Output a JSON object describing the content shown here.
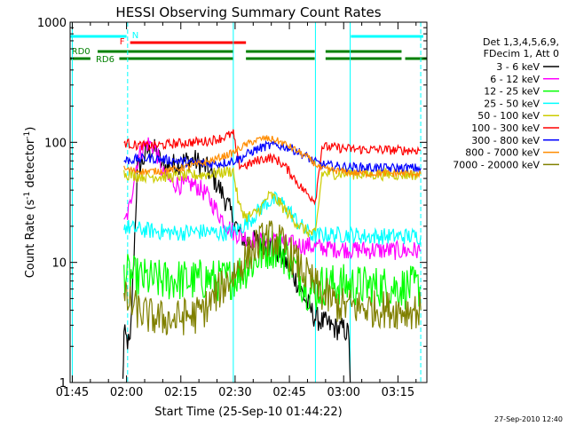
{
  "chart_data": {
    "type": "line",
    "title": "HESSI Observing Summary Count Rates",
    "xlabel": "Start Time (25-Sep-10 01:44:22)",
    "ylabel_main": "Count Rate (s",
    "ylabel_sup1": "-1",
    "ylabel_mid": " detector",
    "ylabel_sup2": "-1",
    "ylabel_end": ")",
    "yscale": "log",
    "ylim": [
      1,
      1000
    ],
    "xlim_min": [
      104.4,
      203
    ],
    "x_ticks": [
      {
        "m": 105,
        "label": "01:45"
      },
      {
        "m": 120,
        "label": "02:00"
      },
      {
        "m": 135,
        "label": "02:15"
      },
      {
        "m": 150,
        "label": "02:30"
      },
      {
        "m": 165,
        "label": "02:45"
      },
      {
        "m": 180,
        "label": "03:00"
      },
      {
        "m": 195,
        "label": "03:15"
      }
    ],
    "y_ticks": [
      {
        "v": 1,
        "label": "1"
      },
      {
        "v": 10,
        "label": "10"
      },
      {
        "v": 100,
        "label": "100"
      },
      {
        "v": 1000,
        "label": "1000"
      }
    ],
    "legend": {
      "position": "right",
      "header": [
        "Det 1,3,4,5,6,9,",
        "FDecim 1, Att 0"
      ],
      "entries": [
        {
          "label": "3 - 6 keV",
          "color": "#000000"
        },
        {
          "label": "6 - 12 keV",
          "color": "#ff00ff"
        },
        {
          "label": "12 - 25 keV",
          "color": "#00ff00"
        },
        {
          "label": "25 - 50 keV",
          "color": "#00ffff"
        },
        {
          "label": "50 - 100 keV",
          "color": "#cccc00"
        },
        {
          "label": "100 - 300 keV",
          "color": "#ff0000"
        },
        {
          "label": "300 - 800 keV",
          "color": "#0000ff"
        },
        {
          "label": "800 - 7000 keV",
          "color": "#ff8c00"
        },
        {
          "label": "7000 - 20000 keV",
          "color": "#808000"
        }
      ]
    },
    "flags": [
      {
        "label": "N",
        "color": "#00ffff",
        "row": "top",
        "segments": [
          [
            104.4,
            120
          ],
          [
            182,
            202
          ]
        ]
      },
      {
        "label": "F",
        "color": "#ff0000",
        "row": "second",
        "segments": [
          [
            121,
            153
          ]
        ]
      },
      {
        "label": "RD0",
        "color": "#008000",
        "row": "third",
        "segments": [
          [
            112,
            149.5
          ],
          [
            153,
            172
          ],
          [
            175,
            196
          ]
        ]
      },
      {
        "label": "RD6",
        "color": "#008000",
        "row": "fourth",
        "segments": [
          [
            104.4,
            110
          ],
          [
            118,
            149.5
          ],
          [
            153,
            172
          ],
          [
            175,
            196
          ],
          [
            197,
            203
          ]
        ]
      }
    ],
    "vertical_lines": [
      {
        "m": 105,
        "color": "#00ffff",
        "style": "solid"
      },
      {
        "m": 120.3,
        "color": "#00ffff",
        "style": "dashed"
      },
      {
        "m": 181.8,
        "color": "#00ffff",
        "style": "solid"
      },
      {
        "m": 201.3,
        "color": "#00ffff",
        "style": "dashed"
      },
      {
        "m": 149.5,
        "color": "#00ffff",
        "style": "solid"
      },
      {
        "m": 172.2,
        "color": "#00ffff",
        "style": "solid"
      }
    ],
    "series": [
      {
        "name": "3 - 6 keV",
        "color": "#000000",
        "x": [
          119,
          119.3,
          121,
          123,
          124.5,
          126,
          128,
          130,
          133,
          136,
          139,
          142,
          145,
          147,
          149,
          151,
          153,
          155,
          158,
          161,
          164,
          167,
          170,
          172,
          174,
          176,
          178,
          180,
          181.5,
          181.8
        ],
        "y": [
          1,
          2.5,
          2,
          60,
          70,
          88,
          85,
          62,
          65,
          70,
          70,
          62,
          45,
          35,
          25,
          18,
          15,
          15,
          14.5,
          13,
          10,
          7,
          4.5,
          3.5,
          3.2,
          3,
          2.8,
          2.8,
          2.5,
          1
        ]
      },
      {
        "name": "6 - 12 keV",
        "color": "#ff00ff",
        "x": [
          119.3,
          121,
          122,
          123,
          124,
          125,
          126,
          127,
          128,
          129,
          130,
          132,
          134,
          136,
          138,
          140,
          142,
          144,
          146,
          148,
          149.5,
          152,
          155,
          158,
          161,
          164,
          167,
          170,
          172,
          174,
          176,
          178,
          180,
          182,
          184,
          186,
          188,
          190,
          192,
          194,
          196,
          198,
          200,
          201.3
        ],
        "y": [
          20,
          30,
          50,
          70,
          85,
          95,
          98,
          95,
          88,
          70,
          55,
          47,
          45,
          43,
          45,
          42,
          37,
          30,
          24,
          20,
          18,
          16.5,
          15.5,
          15,
          15,
          14.5,
          14,
          13.8,
          13.5,
          13.3,
          13.2,
          13,
          13,
          12.8,
          12.8,
          12.7,
          12.7,
          12.6,
          12.6,
          12.5,
          12.5,
          12.5,
          12.5,
          12.5
        ]
      },
      {
        "name": "12 - 25 keV",
        "color": "#00ff00",
        "x": [
          119.3,
          122,
          126,
          130,
          134,
          138,
          142,
          146,
          149.5,
          152,
          155,
          158,
          160,
          162,
          164,
          166,
          168,
          170,
          172,
          174,
          178,
          182,
          186,
          190,
          194,
          198,
          201.3
        ],
        "y": [
          8,
          7.5,
          7.2,
          7,
          7.2,
          7,
          7.3,
          7,
          7.5,
          8.5,
          10,
          12.5,
          13.5,
          13,
          11.5,
          9.5,
          7.5,
          6,
          5.5,
          6.5,
          6.5,
          6.5,
          6.3,
          6.3,
          6.2,
          6.2,
          6.2
        ]
      },
      {
        "name": "25 - 50 keV",
        "color": "#00ffff",
        "x": [
          119.3,
          122,
          126,
          130,
          134,
          138,
          142,
          146,
          149.5,
          151,
          153,
          155,
          157,
          159,
          161,
          163,
          165,
          167,
          169,
          171,
          172.2,
          174,
          178,
          182,
          186,
          190,
          194,
          198,
          201.3
        ],
        "y": [
          20,
          19,
          18.5,
          18,
          17.5,
          18,
          18,
          17.5,
          18,
          19,
          21,
          24,
          28,
          32,
          33,
          31,
          27,
          22,
          19,
          17,
          16.5,
          17,
          17,
          17,
          16.5,
          16.5,
          16.5,
          16.5,
          16.5
        ]
      },
      {
        "name": "50 - 100 keV",
        "color": "#cccc00",
        "x": [
          119.3,
          122,
          126,
          130,
          134,
          138,
          142,
          146,
          149.5,
          151,
          153,
          155,
          157,
          159,
          160,
          162,
          164,
          166,
          168,
          170,
          172.2,
          174,
          178,
          182,
          186,
          190,
          194,
          198,
          201.3
        ],
        "y": [
          55,
          53,
          52,
          52,
          52,
          53,
          54,
          56,
          58,
          30,
          24,
          25,
          28,
          35,
          36,
          32,
          27,
          23,
          20,
          18,
          17,
          55,
          55,
          55,
          54,
          54,
          54,
          54,
          54
        ]
      },
      {
        "name": "100 - 300 keV",
        "color": "#ff0000",
        "x": [
          119.3,
          122,
          126,
          130,
          134,
          138,
          142,
          146,
          149.5,
          151,
          153,
          155,
          157,
          159,
          160,
          162,
          164,
          166,
          168,
          170,
          172.2,
          174,
          178,
          182,
          186,
          190,
          194,
          198,
          201.3
        ],
        "y": [
          100,
          95,
          93,
          95,
          98,
          100,
          102,
          108,
          118,
          65,
          64,
          68,
          72,
          74,
          74,
          70,
          62,
          52,
          43,
          37,
          33,
          92,
          90,
          88,
          87,
          87,
          86,
          86,
          86
        ]
      },
      {
        "name": "300 - 800 keV",
        "color": "#0000ff",
        "x": [
          119.3,
          122,
          126,
          130,
          134,
          138,
          142,
          146,
          149.5,
          152,
          155,
          158,
          161,
          164,
          167,
          170,
          172.2,
          174,
          178,
          182,
          186,
          190,
          194,
          198,
          201.3
        ],
        "y": [
          70,
          72,
          74,
          72,
          70,
          68,
          66,
          67,
          70,
          75,
          85,
          92,
          95,
          92,
          85,
          75,
          68,
          65,
          63,
          62,
          62,
          61,
          61,
          61,
          61
        ]
      },
      {
        "name": "800 - 7000 keV",
        "color": "#ff8c00",
        "x": [
          119.3,
          122,
          126,
          130,
          134,
          138,
          142,
          146,
          149.5,
          152,
          155,
          158,
          161,
          164,
          167,
          170,
          172.2,
          174,
          178,
          182,
          186,
          190,
          194,
          198,
          201.3
        ],
        "y": [
          60,
          58,
          57,
          58,
          60,
          64,
          68,
          75,
          82,
          92,
          102,
          108,
          105,
          96,
          85,
          75,
          66,
          60,
          58,
          56,
          55,
          55,
          55,
          55,
          55
        ]
      },
      {
        "name": "7000 - 20000 keV",
        "color": "#808000",
        "x": [
          119.3,
          121,
          123,
          125,
          127,
          129,
          131,
          133,
          135,
          137,
          139,
          141,
          143,
          145,
          147,
          149.5,
          152,
          154,
          156,
          158,
          160,
          162,
          164,
          166,
          168,
          170,
          172,
          174,
          176,
          178,
          180,
          182,
          184,
          186,
          188,
          190,
          192,
          194,
          196,
          198,
          200,
          201.3
        ],
        "y": [
          5,
          4.5,
          4,
          3.7,
          3.5,
          3.4,
          3.4,
          3.3,
          3.5,
          3.6,
          3.6,
          4,
          4.5,
          5.5,
          6.5,
          8,
          10,
          12,
          14,
          15.5,
          16,
          15,
          13,
          11,
          9,
          7.5,
          6.5,
          5.5,
          5,
          4.5,
          4.3,
          4.3,
          4.2,
          4.2,
          4.1,
          4.1,
          4.1,
          4,
          4,
          4,
          4,
          4
        ]
      }
    ]
  },
  "footer": {
    "timestamp": "27-Sep-2010 12:40"
  }
}
